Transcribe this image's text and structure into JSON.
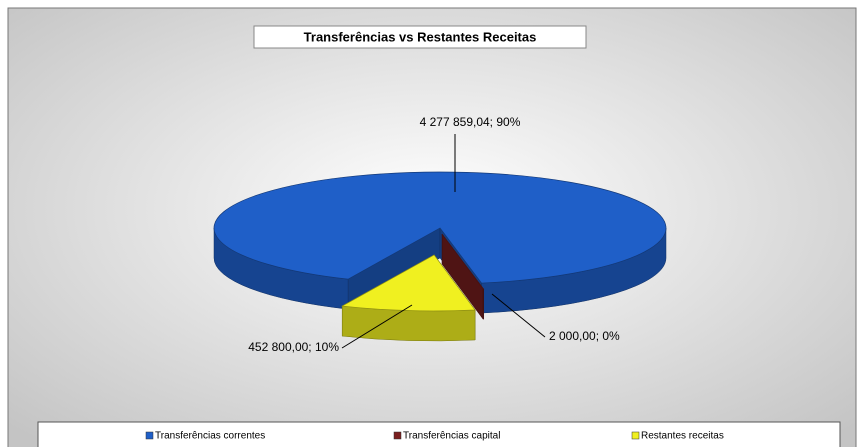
{
  "chart_data": {
    "type": "pie",
    "title": "Transferências vs Restantes Receitas",
    "categories": [
      "Transferências correntes",
      "Transferências capital",
      "Restantes receitas"
    ],
    "values": [
      4277859.04,
      2000,
      452800
    ],
    "value_labels": [
      "4 277 859,04; 90%",
      "2 000,00; 0%",
      "452 800,00; 10%"
    ],
    "colors": [
      "#1f5fc8",
      "#7a1f1f",
      "#f0f020"
    ],
    "legend": "bottom"
  }
}
